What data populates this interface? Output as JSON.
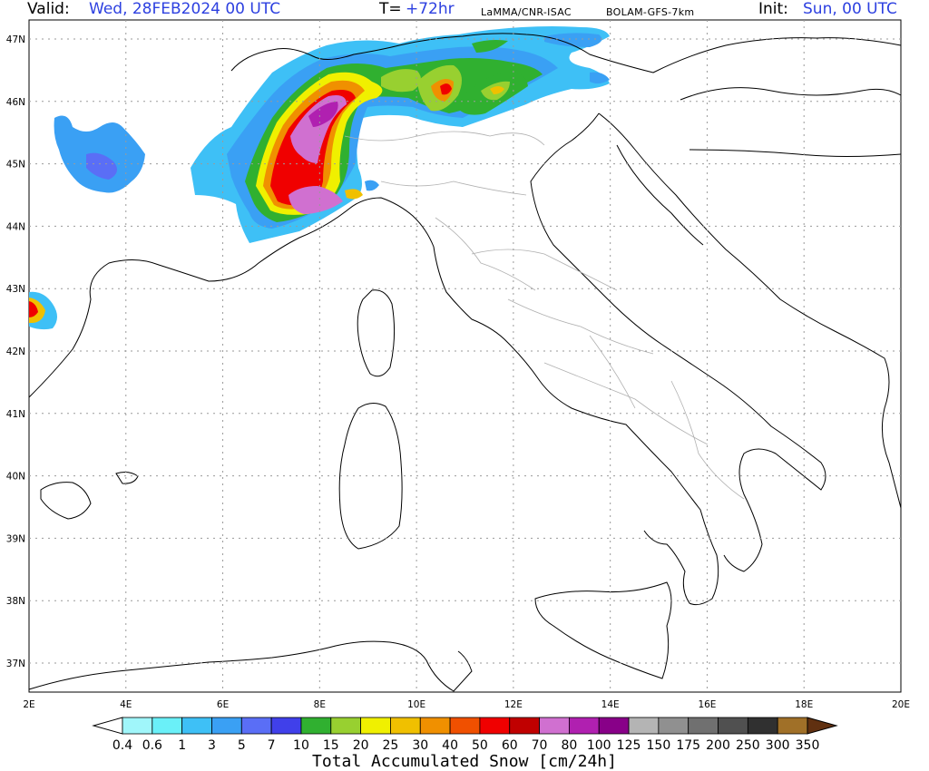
{
  "header": {
    "valid_label": "Valid:",
    "valid_value": "Wed, 28FEB2024   00 UTC",
    "t_label": "T=",
    "t_value": "+72hr",
    "source": "LaMMA/CNR-ISAC",
    "model": "BOLAM-GFS-7km",
    "init_label": "Init:",
    "init_value": "Sun, 00 UTC"
  },
  "axes": {
    "x_ticks": [
      "2E",
      "4E",
      "6E",
      "8E",
      "10E",
      "12E",
      "14E",
      "16E",
      "18E",
      "20E"
    ],
    "y_ticks": [
      "37N",
      "38N",
      "39N",
      "40N",
      "41N",
      "42N",
      "43N",
      "44N",
      "45N",
      "46N",
      "47N"
    ]
  },
  "colorbar": {
    "title": "Total Accumulated Snow [cm/24h]",
    "levels": [
      "0.4",
      "0.6",
      "1",
      "3",
      "5",
      "7",
      "10",
      "15",
      "20",
      "25",
      "30",
      "40",
      "50",
      "60",
      "70",
      "80",
      "100",
      "125",
      "150",
      "175",
      "200",
      "250",
      "300",
      "350"
    ],
    "colors": [
      "#a0f6fa",
      "#6af0f8",
      "#3ec0f6",
      "#3aa0f4",
      "#5a6ef6",
      "#4040ea",
      "#30b030",
      "#98d030",
      "#f0f000",
      "#f0c000",
      "#f09000",
      "#f05000",
      "#f00000",
      "#c00000",
      "#d070d0",
      "#b020b0",
      "#880088",
      "#b4b4b4",
      "#909090",
      "#707070",
      "#505050",
      "#303030",
      "#a07028",
      "#805018",
      "#603010"
    ]
  }
}
